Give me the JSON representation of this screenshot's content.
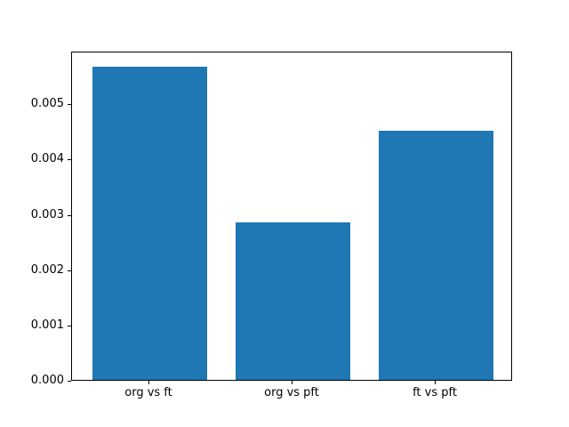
{
  "chart_data": {
    "type": "bar",
    "title": "",
    "xlabel": "",
    "ylabel": "",
    "categories": [
      "org vs ft",
      "org vs pft",
      "ft vs pft"
    ],
    "values": [
      0.00567,
      0.00285,
      0.00451
    ],
    "bar_color": "#1f77b4",
    "frame_color": "#000000",
    "background": "#ffffff",
    "ylim": [
      0,
      0.0059535
    ],
    "xlim": [
      -0.54,
      2.54
    ],
    "bar_width": 0.8,
    "yticks": [
      0,
      0.001,
      0.002,
      0.003,
      0.004,
      0.005
    ],
    "ytick_labels": [
      "0.000",
      "0.001",
      "0.002",
      "0.003",
      "0.004",
      "0.005"
    ],
    "grid": false,
    "legend": null
  }
}
